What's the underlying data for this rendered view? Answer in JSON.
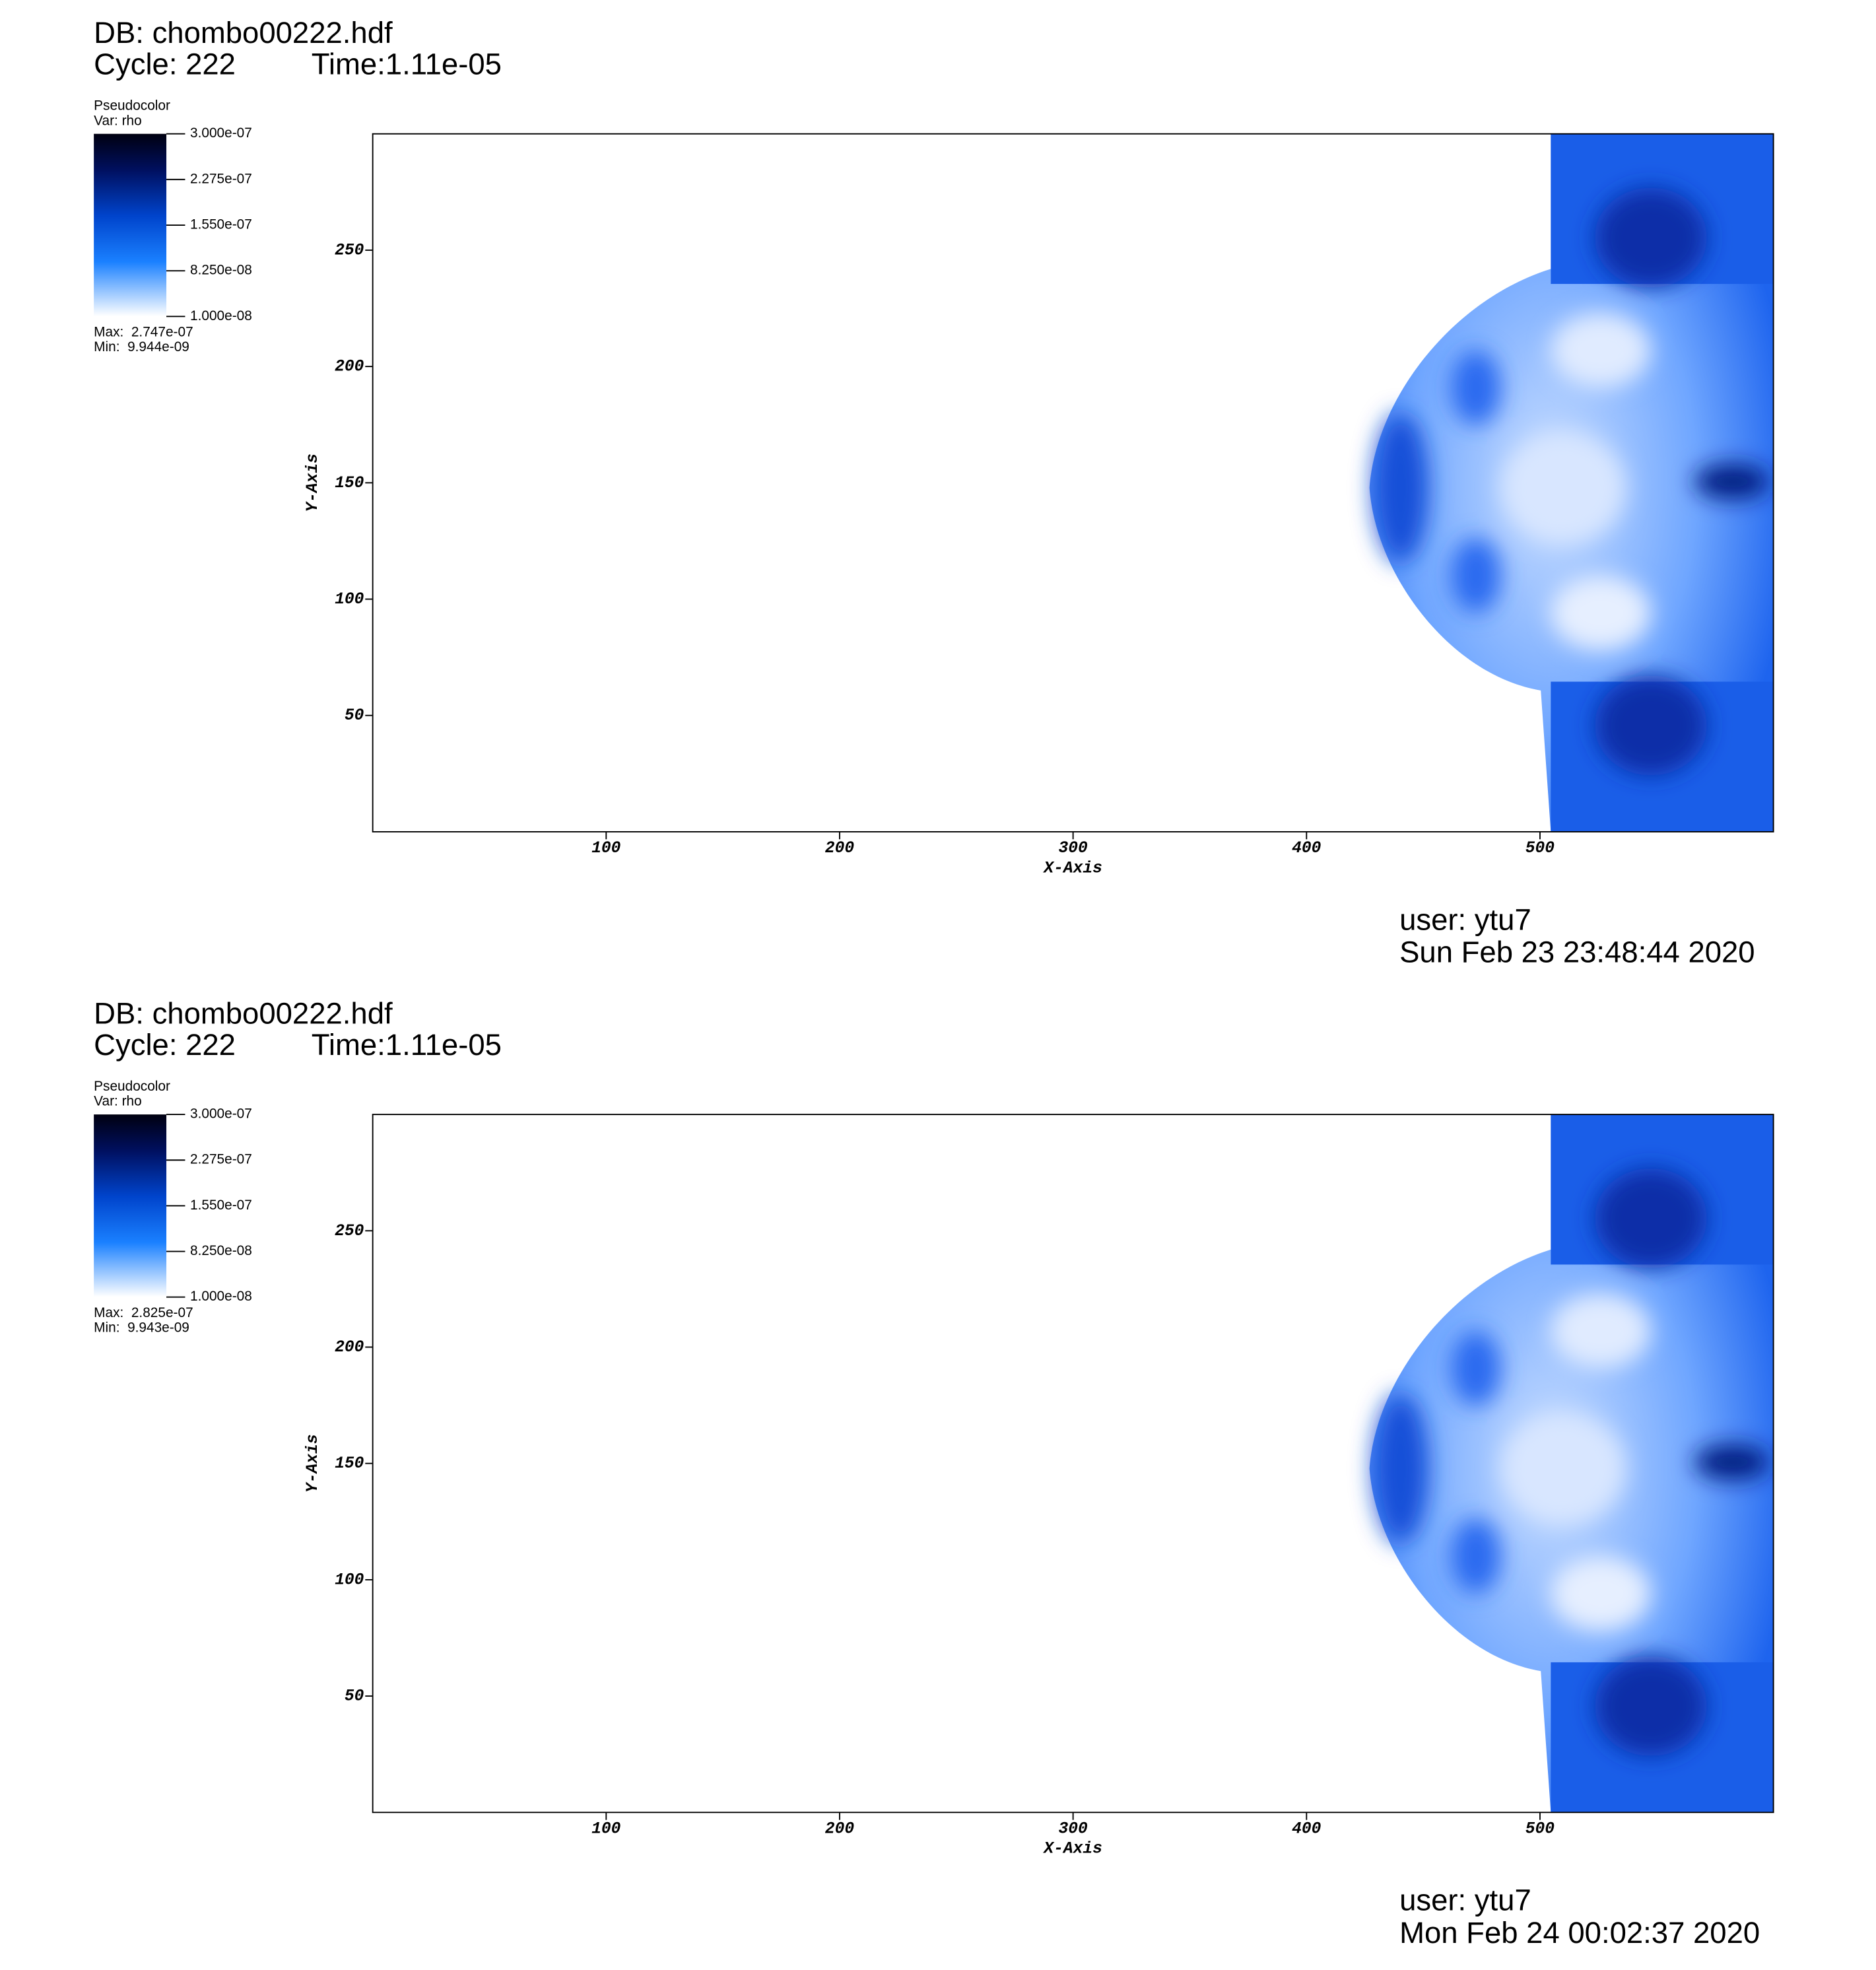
{
  "chart_data": [
    {
      "type": "pseudocolor",
      "db": "DB: chombo00222.hdf",
      "cycle": "Cycle: 222",
      "time": "Time:1.11e-05",
      "legend_title": "Pseudocolor",
      "variable": "Var: rho",
      "clim": [
        1e-08,
        3e-07
      ],
      "cticks": [
        {
          "value": 3e-07,
          "label": "3.000e-07"
        },
        {
          "value": 2.275e-07,
          "label": "2.275e-07"
        },
        {
          "value": 1.55e-07,
          "label": "1.550e-07"
        },
        {
          "value": 8.25e-08,
          "label": "8.250e-08"
        },
        {
          "value": 1e-08,
          "label": "1.000e-08"
        }
      ],
      "max_text": "Max:  2.747e-07",
      "min_text": "Min:  9.944e-09",
      "xlim": [
        0,
        600
      ],
      "ylim": [
        0,
        300
      ],
      "xticks": [
        100,
        200,
        300,
        400,
        500
      ],
      "yticks": [
        50,
        100,
        150,
        200,
        250
      ],
      "xlabel": "X-Axis",
      "ylabel": "Y-Axis",
      "user": "user: ytu7",
      "date": "Sun Feb 23 23:48:44 2020"
    },
    {
      "type": "pseudocolor",
      "db": "DB: chombo00222.hdf",
      "cycle": "Cycle: 222",
      "time": "Time:1.11e-05",
      "legend_title": "Pseudocolor",
      "variable": "Var: rho",
      "clim": [
        1e-08,
        3e-07
      ],
      "cticks": [
        {
          "value": 3e-07,
          "label": "3.000e-07"
        },
        {
          "value": 2.275e-07,
          "label": "2.275e-07"
        },
        {
          "value": 1.55e-07,
          "label": "1.550e-07"
        },
        {
          "value": 8.25e-08,
          "label": "8.250e-08"
        },
        {
          "value": 1e-08,
          "label": "1.000e-08"
        }
      ],
      "max_text": "Max:  2.825e-07",
      "min_text": "Min:  9.943e-09",
      "xlim": [
        0,
        600
      ],
      "ylim": [
        0,
        300
      ],
      "xticks": [
        100,
        200,
        300,
        400,
        500
      ],
      "yticks": [
        50,
        100,
        150,
        200,
        250
      ],
      "xlabel": "X-Axis",
      "ylabel": "Y-Axis",
      "user": "user: ytu7",
      "date": "Mon Feb 24 00:02:37 2020"
    }
  ]
}
